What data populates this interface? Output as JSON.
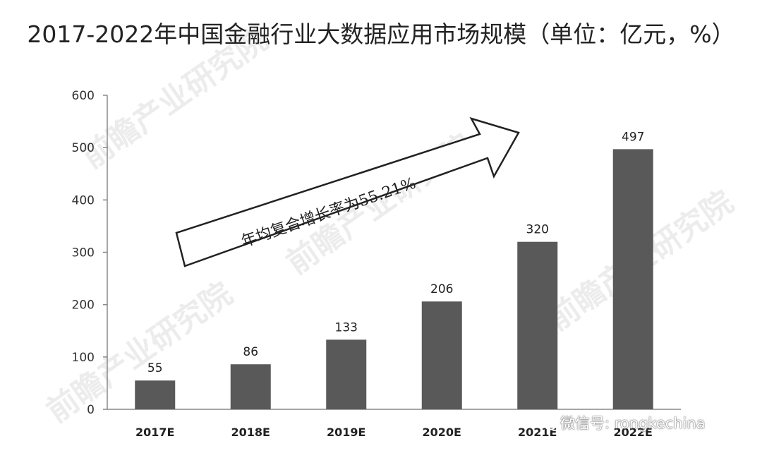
{
  "title": "2017-2022年中国金融行业大数据应用市场规模（单位：亿元，%）",
  "annotation": "年均复合增长率为55.21%",
  "wechat_caption": "微信号: rongkechina",
  "watermark_text": "前瞻产业研究院",
  "chart_data": {
    "type": "bar",
    "categories": [
      "2017E",
      "2018E",
      "2019E",
      "2020E",
      "2021E",
      "2022E"
    ],
    "values": [
      55,
      86,
      133,
      206,
      320,
      497
    ],
    "title": "2017-2022年中国金融行业大数据应用市场规模（单位：亿元，%）",
    "xlabel": "",
    "ylabel": "",
    "ylim": [
      0,
      600
    ],
    "yticks": [
      0,
      100,
      200,
      300,
      400,
      500,
      600
    ],
    "data_labels": [
      "55",
      "86",
      "133",
      "206",
      "320",
      "497"
    ],
    "grid": false,
    "legend": "none",
    "bar_color": "#595959"
  }
}
